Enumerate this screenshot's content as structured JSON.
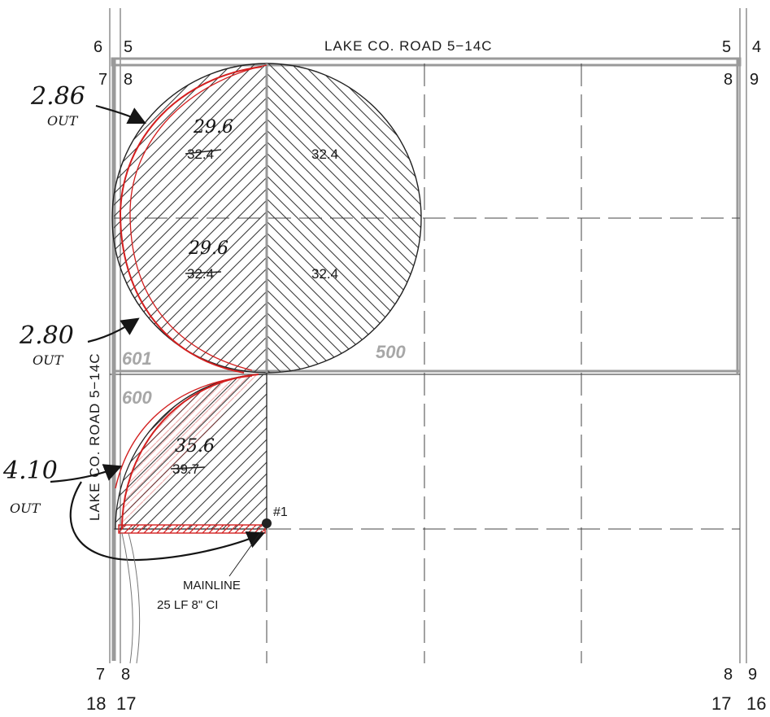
{
  "road_top": "LAKE CO. ROAD 5−14C",
  "road_left": "LAKE CO. ROAD 5−14C",
  "section_numbers": {
    "top_left_outer": "6",
    "top_left_inner": "5",
    "top_right_inner": "5",
    "top_right_outer": "4",
    "upper_left_outer": "7",
    "upper_left_inner": "8",
    "upper_right_inner": "8",
    "upper_right_outer": "9",
    "lower_left_outer": "7",
    "lower_left_inner": "8",
    "lower_right_inner": "8",
    "lower_right_outer": "9",
    "bottom_left_outer": "18",
    "bottom_left_inner": "17",
    "bottom_right_inner": "17",
    "bottom_right_outer": "16"
  },
  "fields": {
    "nw_top_west_acres_orig": "32.4",
    "nw_top_west_acres_new": "29.6",
    "nw_top_east_acres": "32.4",
    "nw_bottom_west_acres_orig": "32.4",
    "nw_bottom_west_acres_new": "29.6",
    "nw_bottom_east_acres": "32.4",
    "sw_acres_orig": "39.7",
    "sw_acres_new": "35.6",
    "id_601": "601",
    "id_500": "500",
    "id_600": "600"
  },
  "annotations": {
    "note1_value": "2.86",
    "note1_out": "OUT",
    "note2_value": "2.80",
    "note2_out": "OUT",
    "note3_value": "4.10",
    "note3_out": "OUT"
  },
  "well": {
    "id": "#1",
    "line1": "MAINLINE",
    "line2": "25 LF 8\" CI"
  },
  "colors": {
    "edit_red": "#d21f1f",
    "road_gray": "#9a9a9a",
    "ink": "#1a1a1a"
  }
}
